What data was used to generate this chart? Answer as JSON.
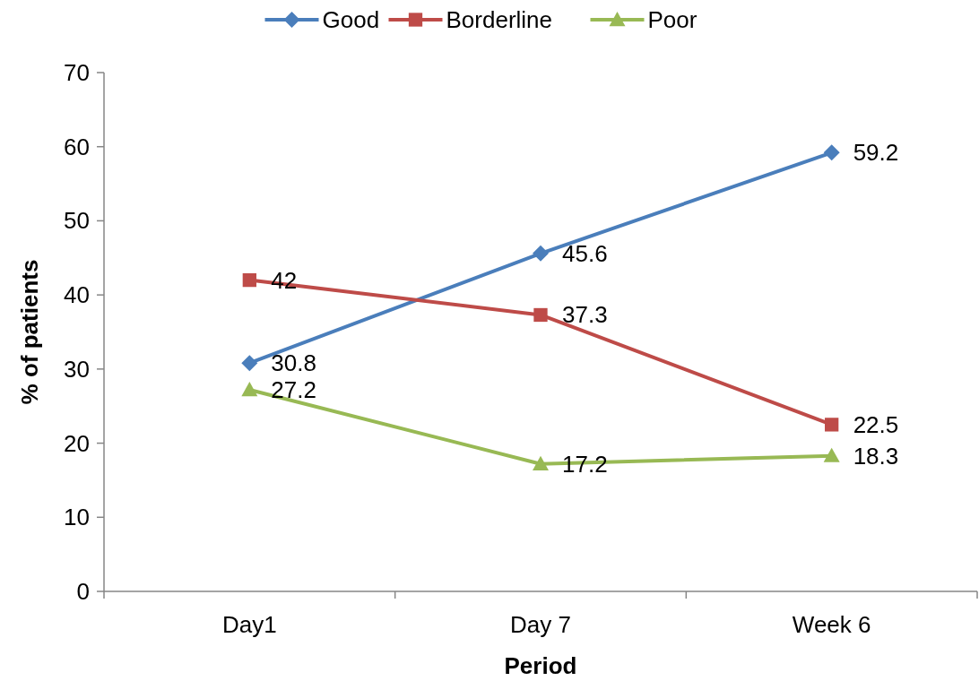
{
  "chart_data": {
    "type": "line",
    "xlabel": "Period",
    "ylabel": "% of patients",
    "categories": [
      "Day1",
      "Day 7",
      "Week 6"
    ],
    "series": [
      {
        "name": "Good",
        "color": "#4a7ebb",
        "marker": "diamond",
        "values": [
          30.8,
          45.6,
          59.2
        ]
      },
      {
        "name": "Borderline",
        "color": "#be4b48",
        "marker": "square",
        "values": [
          42,
          37.3,
          22.5
        ]
      },
      {
        "name": "Poor",
        "color": "#98b954",
        "marker": "triangle",
        "values": [
          27.2,
          17.2,
          18.3
        ]
      }
    ],
    "ylim": [
      0,
      70
    ],
    "yticks": [
      0,
      10,
      20,
      30,
      40,
      50,
      60,
      70
    ],
    "data_labels": true,
    "legend": "top",
    "grid": false
  }
}
